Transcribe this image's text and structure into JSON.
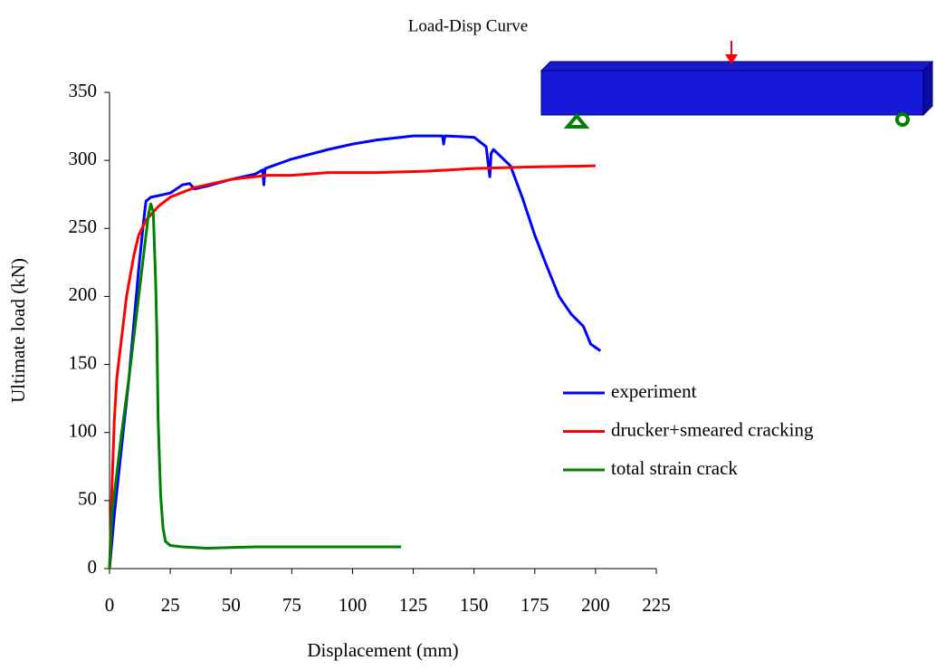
{
  "chart_data": {
    "type": "line",
    "title": "Load-Disp Curve",
    "x_label": "Displacement (mm)",
    "y_label": "Ultimate load (kN)",
    "xlim": [
      0,
      225
    ],
    "xticks": [
      0,
      25,
      50,
      75,
      100,
      125,
      150,
      175,
      200,
      225
    ],
    "ylim": [
      0,
      350
    ],
    "yticks": [
      0,
      50,
      100,
      150,
      200,
      250,
      300,
      350
    ],
    "grid": false,
    "legend": "right",
    "series": [
      {
        "name": "experiment",
        "color": "#0000ff",
        "x": [
          0,
          2,
          5,
          8,
          10,
          12,
          14,
          15,
          17,
          20,
          25,
          30,
          33,
          35,
          40,
          50,
          60,
          63,
          63.5,
          64,
          75,
          90,
          100,
          110,
          125,
          137,
          137.5,
          138,
          150,
          155,
          156,
          156.5,
          157,
          158,
          165,
          170,
          175,
          180,
          185,
          190,
          195,
          198,
          202
        ],
        "values": [
          0,
          40,
          90,
          140,
          180,
          220,
          255,
          270,
          273,
          274,
          276,
          282,
          283,
          279,
          281,
          286,
          290,
          293,
          282,
          294,
          301,
          308,
          312,
          315,
          318,
          318,
          312,
          318,
          317,
          310,
          295,
          288,
          305,
          308,
          296,
          272,
          245,
          222,
          200,
          187,
          178,
          165,
          160
        ]
      },
      {
        "name": "drucker+smeared cracking",
        "color": "#ff0000",
        "x": [
          0,
          1,
          2,
          3,
          5,
          7,
          10,
          12,
          15,
          20,
          25,
          35,
          50,
          65,
          75,
          90,
          110,
          130,
          150,
          170,
          200
        ],
        "values": [
          0,
          60,
          110,
          140,
          170,
          200,
          230,
          245,
          256,
          266,
          273,
          280,
          286,
          289,
          289,
          291,
          291,
          292,
          294,
          295,
          296
        ]
      },
      {
        "name": "total strain crack",
        "color": "#008000",
        "x": [
          0,
          1,
          3,
          5,
          8,
          11,
          14,
          16,
          17,
          18,
          19,
          19.5,
          20,
          21,
          22,
          23,
          25,
          30,
          40,
          60,
          80,
          100,
          120
        ],
        "values": [
          0,
          40,
          70,
          100,
          140,
          185,
          230,
          260,
          268,
          262,
          210,
          170,
          110,
          55,
          30,
          20,
          17,
          16,
          15,
          16,
          16,
          16,
          16
        ]
      }
    ]
  }
}
